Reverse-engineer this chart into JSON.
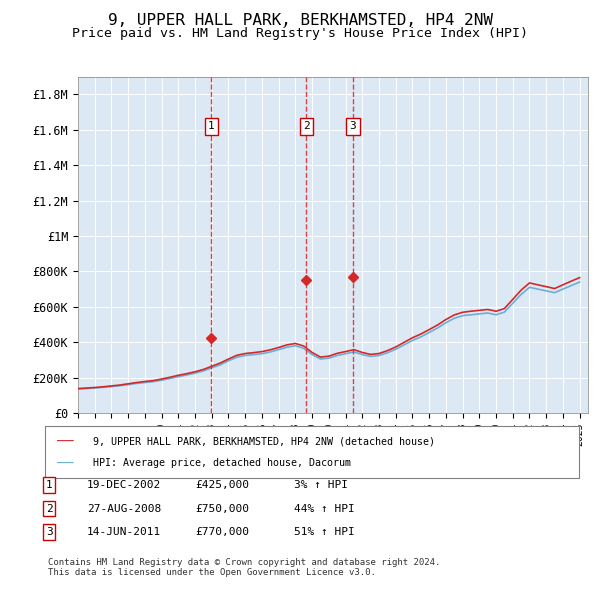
{
  "title": "9, UPPER HALL PARK, BERKHAMSTED, HP4 2NW",
  "subtitle": "Price paid vs. HM Land Registry's House Price Index (HPI)",
  "title_fontsize": 13,
  "subtitle_fontsize": 11,
  "background_color": "#dce9f5",
  "plot_bg_color": "#dce9f5",
  "ylabel_ticks": [
    "£0",
    "£200K",
    "£400K",
    "£600K",
    "£800K",
    "£1M",
    "£1.2M",
    "£1.4M",
    "£1.6M",
    "£1.8M"
  ],
  "ytick_values": [
    0,
    200000,
    400000,
    600000,
    800000,
    1000000,
    1200000,
    1400000,
    1600000,
    1800000
  ],
  "ylim": [
    0,
    1900000
  ],
  "xlim_start": 1995.0,
  "xlim_end": 2025.5,
  "sale_dates": [
    2002.97,
    2008.65,
    2011.45
  ],
  "sale_prices": [
    425000,
    750000,
    770000
  ],
  "sale_labels": [
    "1",
    "2",
    "3"
  ],
  "legend_line1": "9, UPPER HALL PARK, BERKHAMSTED, HP4 2NW (detached house)",
  "legend_line2": "HPI: Average price, detached house, Dacorum",
  "table_data": [
    [
      "1",
      "19-DEC-2002",
      "£425,000",
      "3% ↑ HPI"
    ],
    [
      "2",
      "27-AUG-2008",
      "£750,000",
      "44% ↑ HPI"
    ],
    [
      "3",
      "14-JUN-2011",
      "£770,000",
      "51% ↑ HPI"
    ]
  ],
  "footer": "Contains HM Land Registry data © Crown copyright and database right 2024.\nThis data is licensed under the Open Government Licence v3.0.",
  "hpi_line_color": "#6baed6",
  "price_line_color": "#d62728",
  "vline_color": "#d62728",
  "hpi_years": [
    1995,
    1995.5,
    1996,
    1996.5,
    1997,
    1997.5,
    1998,
    1998.5,
    1999,
    1999.5,
    2000,
    2000.5,
    2001,
    2001.5,
    2002,
    2002.5,
    2003,
    2003.5,
    2004,
    2004.5,
    2005,
    2005.5,
    2006,
    2006.5,
    2007,
    2007.5,
    2008,
    2008.5,
    2009,
    2009.5,
    2010,
    2010.5,
    2011,
    2011.5,
    2012,
    2012.5,
    2013,
    2013.5,
    2014,
    2014.5,
    2015,
    2015.5,
    2016,
    2016.5,
    2017,
    2017.5,
    2018,
    2018.5,
    2019,
    2019.5,
    2020,
    2020.5,
    2021,
    2021.5,
    2022,
    2022.5,
    2023,
    2023.5,
    2024,
    2024.5,
    2025
  ],
  "hpi_values": [
    135000,
    138000,
    141000,
    145000,
    149000,
    154000,
    160000,
    167000,
    172000,
    177000,
    185000,
    195000,
    205000,
    215000,
    225000,
    238000,
    255000,
    272000,
    295000,
    315000,
    325000,
    330000,
    335000,
    345000,
    358000,
    372000,
    380000,
    365000,
    330000,
    305000,
    310000,
    325000,
    335000,
    345000,
    330000,
    320000,
    325000,
    340000,
    360000,
    385000,
    410000,
    430000,
    455000,
    480000,
    510000,
    535000,
    550000,
    555000,
    560000,
    565000,
    555000,
    570000,
    620000,
    670000,
    710000,
    700000,
    690000,
    680000,
    700000,
    720000,
    740000
  ],
  "price_years": [
    1995,
    1995.5,
    1996,
    1996.5,
    1997,
    1997.5,
    1998,
    1998.5,
    1999,
    1999.5,
    2000,
    2000.5,
    2001,
    2001.5,
    2002,
    2002.5,
    2003,
    2003.5,
    2004,
    2004.5,
    2005,
    2005.5,
    2006,
    2006.5,
    2007,
    2007.5,
    2008,
    2008.5,
    2009,
    2009.5,
    2010,
    2010.5,
    2011,
    2011.5,
    2012,
    2012.5,
    2013,
    2013.5,
    2014,
    2014.5,
    2015,
    2015.5,
    2016,
    2016.5,
    2017,
    2017.5,
    2018,
    2018.5,
    2019,
    2019.5,
    2020,
    2020.5,
    2021,
    2021.5,
    2022,
    2022.5,
    2023,
    2023.5,
    2024,
    2024.5,
    2025
  ],
  "price_values": [
    138000,
    141000,
    144000,
    148000,
    153000,
    158000,
    165000,
    172000,
    178000,
    183000,
    192000,
    202000,
    213000,
    222000,
    233000,
    246000,
    264000,
    282000,
    305000,
    326000,
    336000,
    341000,
    347000,
    357000,
    370000,
    385000,
    393000,
    378000,
    342000,
    316000,
    321000,
    337000,
    347000,
    358000,
    342000,
    331000,
    336000,
    352000,
    373000,
    399000,
    425000,
    446000,
    471000,
    497000,
    528000,
    554000,
    569000,
    575000,
    580000,
    585000,
    575000,
    590000,
    642000,
    694000,
    735000,
    724000,
    714000,
    703000,
    724000,
    745000,
    765000
  ]
}
